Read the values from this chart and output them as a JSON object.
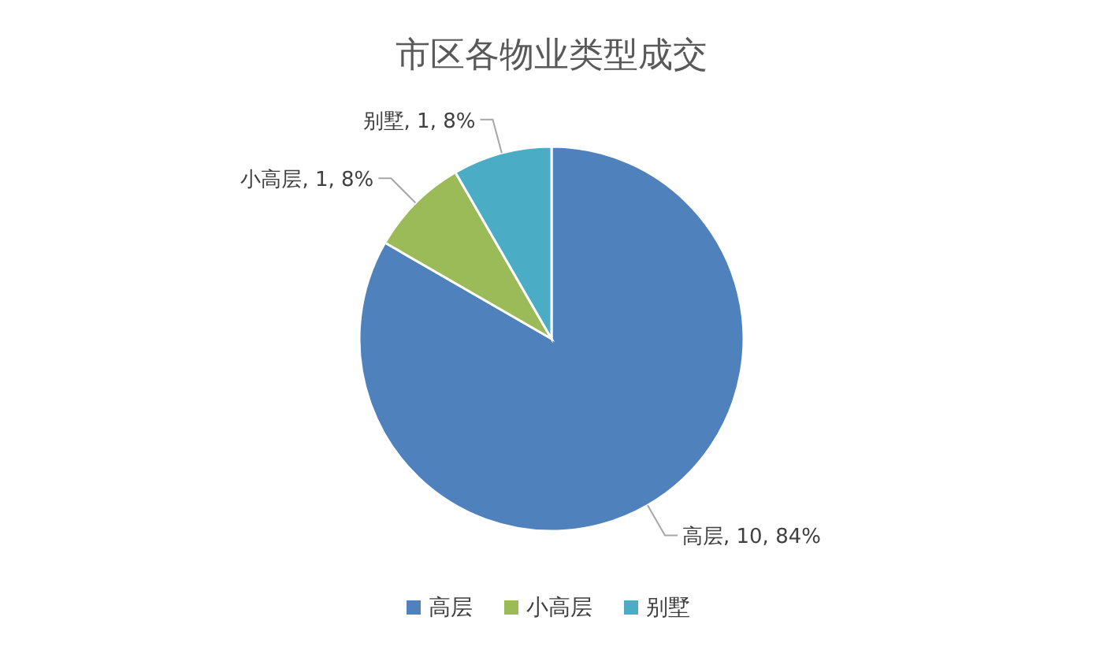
{
  "chart_data": {
    "type": "pie",
    "title": "市区各物业类型成交",
    "categories": [
      "高层",
      "小高层",
      "别墅"
    ],
    "values": [
      10,
      1,
      1
    ],
    "colors": [
      "#4f81bd",
      "#9bbb59",
      "#4bacc6"
    ],
    "value_labels": [
      "高层, 10, 84%",
      "小高层, 1, 8%",
      "别墅, 1, 8%"
    ],
    "legend": "bottom"
  }
}
